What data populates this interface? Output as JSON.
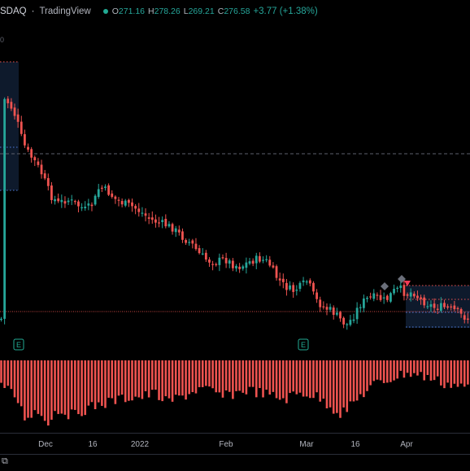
{
  "header": {
    "symbol_part": "SDAQ",
    "separator": "·",
    "provider": "TradingView",
    "ohlc": [
      {
        "label": "O",
        "value": "271.16"
      },
      {
        "label": "H",
        "value": "278.26"
      },
      {
        "label": "L",
        "value": "269.21"
      },
      {
        "label": "C",
        "value": "276.58"
      }
    ],
    "change": "+3.77 (+1.38%)"
  },
  "side_mark": "0",
  "x_axis": {
    "ticks": [
      "Dec",
      "16",
      "2022",
      "Feb",
      "Mar",
      "16",
      "Apr"
    ]
  },
  "bottom": {
    "icon_name": "chart-settings-icon"
  },
  "earnings_markers": [
    {
      "label": "E"
    },
    {
      "label": "E"
    }
  ],
  "colors": {
    "up": "#26a69a",
    "down": "#ef5350",
    "histogram": "#ef5350",
    "background": "#000000",
    "grid_line": "#5d606b",
    "support_line": "#ef5350",
    "box": "#0e1a2c"
  },
  "chart_data": {
    "type": "candlestick",
    "price_panel": {
      "candles_shown": 140
    },
    "indicator_panel": {
      "type": "bar",
      "sign": "negative"
    }
  }
}
